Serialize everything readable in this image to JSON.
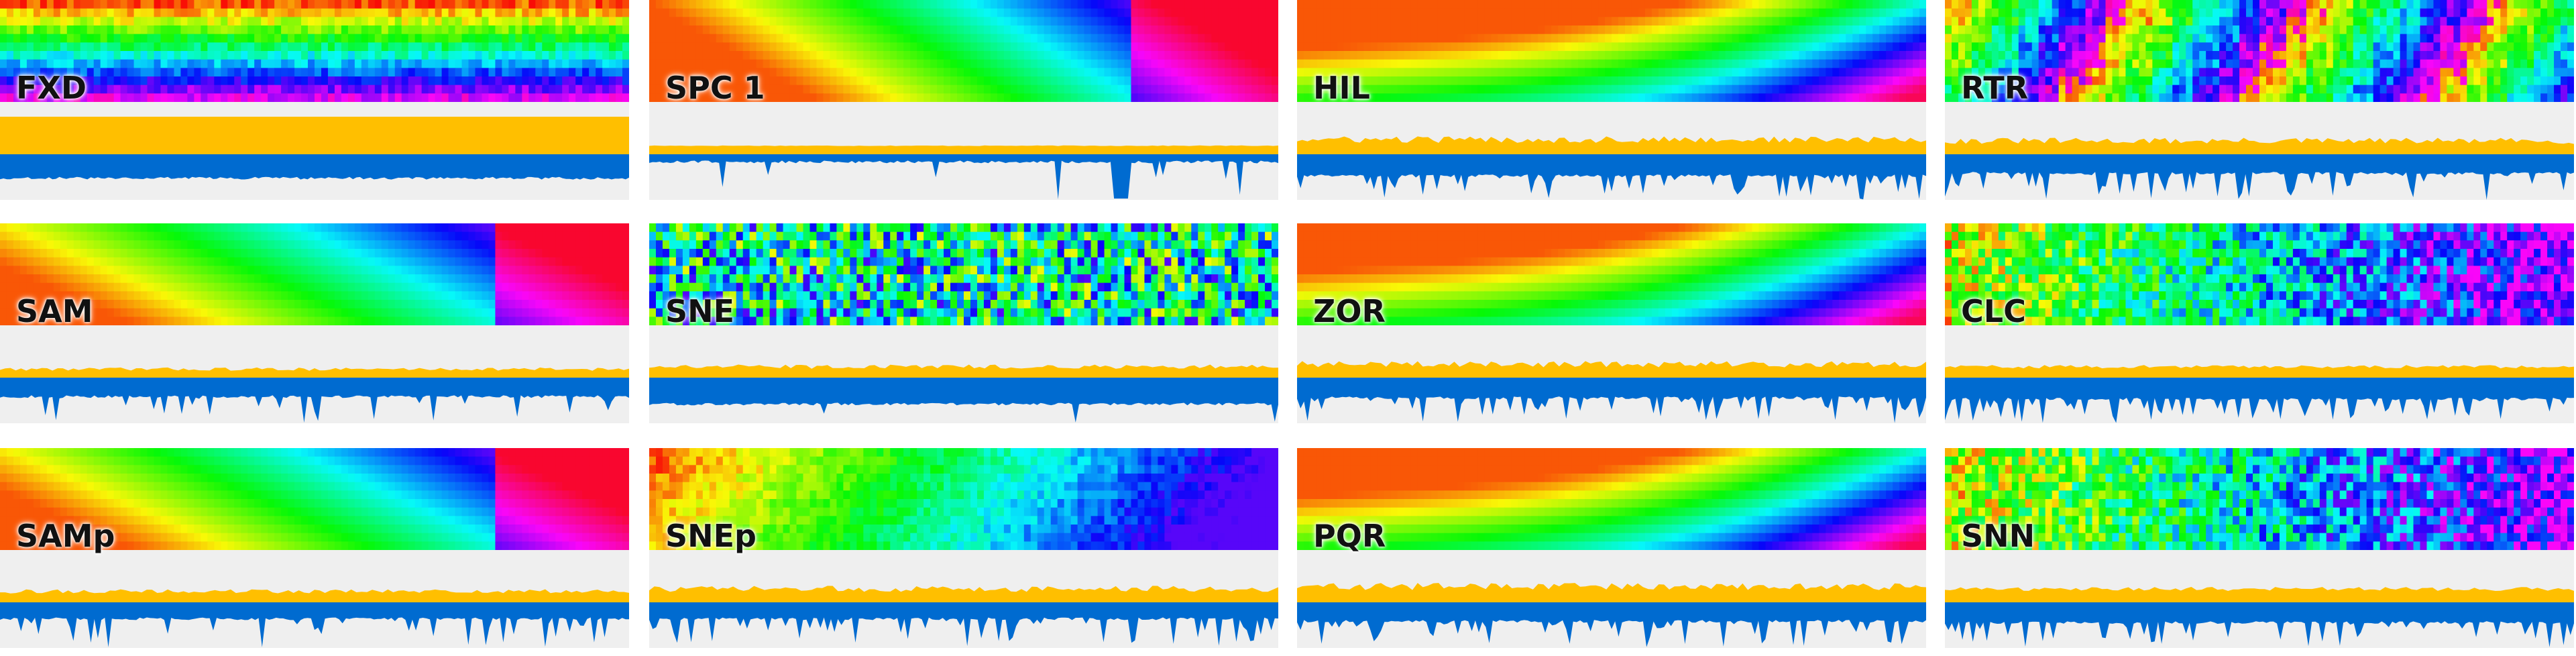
{
  "colors": {
    "gold_area": "#ffbf00",
    "blue_area": "#006bd0",
    "background": "#efefef"
  },
  "chart_data": [
    {
      "type": "area",
      "label": "FXD",
      "strip": "fixed",
      "gold_level": 1.0,
      "blue_level": 0.9,
      "gold_noise": 0.0,
      "blue_noise": 0.0
    },
    {
      "type": "area",
      "label": "SPC 1",
      "strip": "diagonal-smooth",
      "gold_level": 0.35,
      "blue_level": 0.25,
      "gold_noise": 0.05,
      "blue_noise": 0.08,
      "blue_dip": true
    },
    {
      "type": "area",
      "label": "HIL",
      "strip": "curved-layers",
      "gold_level": 0.6,
      "blue_level": 0.8,
      "gold_noise": 0.3,
      "blue_noise": 0.5
    },
    {
      "type": "area",
      "label": "RTR",
      "strip": "blocky-noise",
      "gold_level": 0.55,
      "blue_level": 0.7,
      "gold_noise": 0.3,
      "blue_noise": 0.4
    },
    {
      "type": "area",
      "label": "SAM",
      "strip": "diagonal",
      "gold_level": 0.35,
      "blue_level": 0.7,
      "gold_noise": 0.25,
      "blue_noise": 0.3
    },
    {
      "type": "area",
      "label": "SNE",
      "strip": "noisy",
      "gold_level": 0.45,
      "blue_level": 1.0,
      "gold_noise": 0.25,
      "blue_noise": 0.05
    },
    {
      "type": "area",
      "label": "ZOR",
      "strip": "curved-layers",
      "gold_level": 0.55,
      "blue_level": 0.75,
      "gold_noise": 0.3,
      "blue_noise": 0.5
    },
    {
      "type": "area",
      "label": "CLC",
      "strip": "noisy-blue",
      "gold_level": 0.45,
      "blue_level": 0.8,
      "gold_noise": 0.2,
      "blue_noise": 0.5
    },
    {
      "type": "area",
      "label": "SAMp",
      "strip": "diagonal",
      "gold_level": 0.45,
      "blue_level": 0.6,
      "gold_noise": 0.25,
      "blue_noise": 0.3
    },
    {
      "type": "area",
      "label": "SNEp",
      "strip": "blocky-smooth",
      "gold_level": 0.55,
      "blue_level": 0.6,
      "gold_noise": 0.3,
      "blue_noise": 0.4
    },
    {
      "type": "area",
      "label": "PQR",
      "strip": "curved-layers",
      "gold_level": 0.65,
      "blue_level": 0.7,
      "gold_noise": 0.3,
      "blue_noise": 0.5
    },
    {
      "type": "area",
      "label": "SNN",
      "strip": "noisy-blue",
      "gold_level": 0.55,
      "blue_level": 0.75,
      "gold_noise": 0.2,
      "blue_noise": 0.4
    }
  ]
}
